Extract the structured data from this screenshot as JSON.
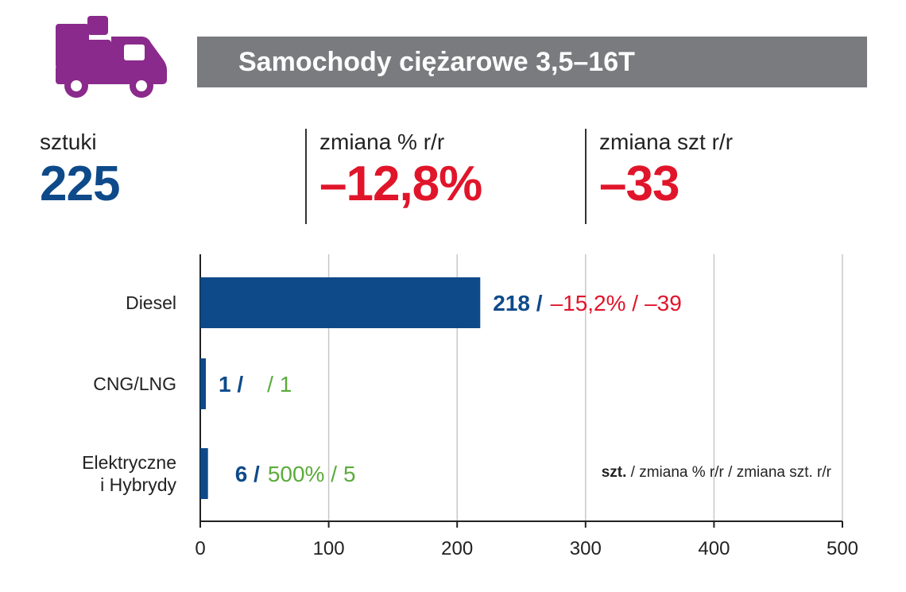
{
  "header": {
    "title": "Samochody ciężarowe 3,5–16T",
    "icon": "delivery-truck-icon",
    "icon_color": "#8a2a8c",
    "title_bg": "#7a7b7e"
  },
  "kpis": [
    {
      "label": "sztuki",
      "value": "225",
      "color": "#0e4a8a"
    },
    {
      "label": "zmiana % r/r",
      "value": "–12,8%",
      "color": "#e0152a"
    },
    {
      "label": "zmiana szt r/r",
      "value": "–33",
      "color": "#e0152a"
    }
  ],
  "colors": {
    "bar": "#0e4a8a",
    "negative": "#e0152a",
    "positive": "#5cab3c",
    "grid": "#c8c8c8"
  },
  "chart_data": {
    "type": "bar",
    "orientation": "horizontal",
    "categories": [
      "Diesel",
      "CNG/LNG",
      "Elektryczne i Hybrydy"
    ],
    "category_lines": [
      [
        "Diesel"
      ],
      [
        "CNG/LNG"
      ],
      [
        "Elektryczne",
        "i Hybrydy"
      ]
    ],
    "values": [
      218,
      1,
      6
    ],
    "labels": [
      {
        "count": "218 /",
        "pct": "–15,2% /",
        "delta": "–39",
        "change_color": "negative"
      },
      {
        "count": "1 /",
        "pct": "",
        "delta": "/ 1",
        "change_color": "positive"
      },
      {
        "count": "6 /",
        "pct": "500% /",
        "delta": "5",
        "change_color": "positive"
      }
    ],
    "xlim": [
      0,
      500
    ],
    "xticks": [
      "0",
      "100",
      "200",
      "300",
      "400",
      "500"
    ],
    "grid": true,
    "legend_note": {
      "bold": "szt.",
      "rest": " / zmiana % r/r / zmiana szt. r/r"
    }
  }
}
